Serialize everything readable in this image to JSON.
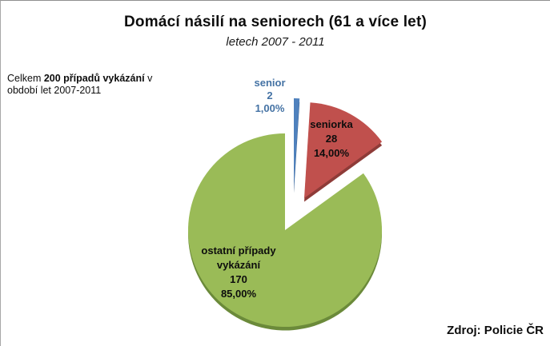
{
  "chart_data": {
    "type": "pie",
    "title": "Domácí násilí na seniorech (61 a více let)",
    "subtitle": "letech 2007 - 2011",
    "categories": [
      "senior",
      "seniorka",
      "ostatní případy vykázání"
    ],
    "values": [
      2,
      28,
      170
    ],
    "percent_labels": [
      "1,00%",
      "14,00%",
      "85,00%"
    ],
    "total": 200,
    "colors": [
      "#4F81BD",
      "#C0504D",
      "#9ABB57"
    ],
    "depth_colors": [
      "#31517a",
      "#8E3B38",
      "#6B8A3A"
    ],
    "start_angle_deg": 0,
    "direction": "clockwise",
    "exploded": true,
    "legend": "none",
    "labels": {
      "senior": {
        "name": "senior",
        "value": "2",
        "pct": "1,00%",
        "color": "#4472A4"
      },
      "seniorka": {
        "name": "seniorka",
        "value": "28",
        "pct": "14,00%",
        "color": "#0d0d0d"
      },
      "ostatni": {
        "name_line1": "ostatní případy",
        "name_line2": "vykázání",
        "value": "170",
        "pct": "85,00%",
        "color": "#0d0d0d"
      }
    }
  },
  "annotation": {
    "prefix": "Celkem ",
    "bold": "200 případů vykázání",
    "suffix": " v",
    "line2": "období let 2007-2011"
  },
  "source": {
    "label": "Zdroj: Policie ČR"
  }
}
